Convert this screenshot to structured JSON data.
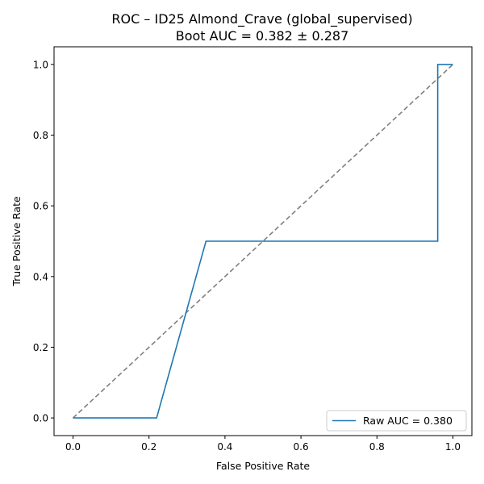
{
  "chart_data": {
    "type": "line",
    "title": "ROC – ID25 Almond_Crave (global_supervised)",
    "subtitle": "Boot AUC = 0.382 ± 0.287",
    "xlabel": "False Positive Rate",
    "ylabel": "True Positive Rate",
    "xlim": [
      -0.05,
      1.05
    ],
    "ylim": [
      -0.05,
      1.05
    ],
    "xticks": [
      0.0,
      0.2,
      0.4,
      0.6,
      0.8,
      1.0
    ],
    "yticks": [
      0.0,
      0.2,
      0.4,
      0.6,
      0.8,
      1.0
    ],
    "xtick_labels": [
      "0.0",
      "0.2",
      "0.4",
      "0.6",
      "0.8",
      "1.0"
    ],
    "ytick_labels": [
      "0.0",
      "0.2",
      "0.4",
      "0.6",
      "0.8",
      "1.0"
    ],
    "grid": false,
    "legend_position": "lower-right",
    "series": [
      {
        "name": "Raw AUC = 0.380",
        "style": "solid",
        "color": "#1f77b4",
        "x": [
          0.0,
          0.22,
          0.35,
          0.96,
          0.96,
          1.0
        ],
        "y": [
          0.0,
          0.0,
          0.5,
          0.5,
          1.0,
          1.0
        ]
      },
      {
        "style": "dashed",
        "color": "#808080",
        "x": [
          0.0,
          1.0
        ],
        "y": [
          0.0,
          1.0
        ]
      }
    ]
  }
}
